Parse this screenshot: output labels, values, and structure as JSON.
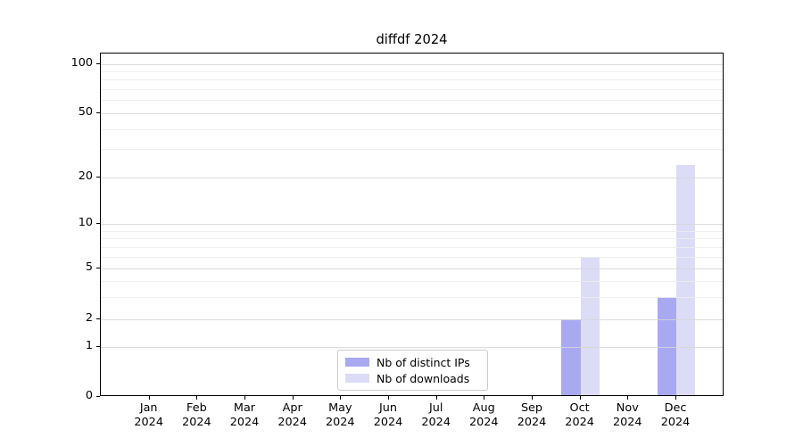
{
  "title": "diffdf 2024",
  "colors": {
    "distinct_ips": "#a9a9f2",
    "downloads": "#dcdcf7",
    "grid_major": "#d6d6d6",
    "grid_minor": "#ededed",
    "axis_line": "#000000",
    "legend_border": "#cccccc",
    "background": "#ffffff"
  },
  "chart_data": {
    "type": "bar",
    "title": "diffdf 2024",
    "categories": [
      "Jan",
      "Feb",
      "Mar",
      "Apr",
      "May",
      "Jun",
      "Jul",
      "Aug",
      "Sep",
      "Oct",
      "Nov",
      "Dec"
    ],
    "category_year": "2024",
    "series": [
      {
        "name": "Nb of distinct IPs",
        "color": "#a9a9f2",
        "values": [
          0,
          0,
          0,
          0,
          0,
          0,
          0,
          0,
          0,
          2,
          0,
          3
        ]
      },
      {
        "name": "Nb of downloads",
        "color": "#dcdcf7",
        "values": [
          0,
          0,
          0,
          0,
          0,
          0,
          0,
          0,
          0,
          6,
          0,
          24
        ]
      }
    ],
    "xlabel": "",
    "ylabel": "",
    "y_ticks": [
      0,
      1,
      2,
      5,
      10,
      20,
      50,
      100
    ],
    "y_minor_ticks": [
      3,
      4,
      6,
      7,
      8,
      9,
      30,
      40,
      60,
      70,
      80,
      90
    ],
    "y_scale": "log-like (linear 0-1, logarithmic above 1)",
    "ylim": [
      0,
      115
    ],
    "grid": "horizontal major and minor",
    "legend_position": "bottom-center"
  },
  "legend": {
    "item1": "Nb of distinct IPs",
    "item2": "Nb of downloads"
  }
}
